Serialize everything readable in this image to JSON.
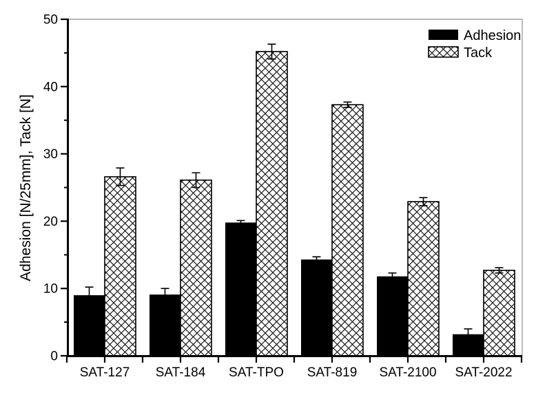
{
  "chart_data": {
    "type": "bar",
    "title": "",
    "xlabel": "",
    "ylabel": "Adhesion [N/25mm], Tack [N]",
    "categories": [
      "SAT-127",
      "SAT-184",
      "SAT-TPO",
      "SAT-819",
      "SAT-2100",
      "SAT-2022"
    ],
    "series": [
      {
        "name": "Adhesion",
        "style": "solid",
        "values": [
          9.0,
          9.1,
          19.8,
          14.3,
          11.8,
          3.2
        ],
        "errors": [
          1.2,
          0.9,
          0.3,
          0.4,
          0.5,
          0.8
        ]
      },
      {
        "name": "Tack",
        "style": "crosshatch",
        "values": [
          26.6,
          26.1,
          45.2,
          37.3,
          22.9,
          12.7
        ],
        "errors": [
          1.3,
          1.1,
          1.1,
          0.4,
          0.6,
          0.4
        ]
      }
    ],
    "ylim": [
      0,
      50
    ],
    "y_major_ticks": [
      0,
      10,
      20,
      30,
      40,
      50
    ],
    "y_minor_ticks": [
      5,
      15,
      25,
      35,
      45
    ],
    "grid": false,
    "legend_position": "top-right",
    "error_bars": true
  },
  "colors": {
    "bar_fill": "#000000",
    "hatch_ink": "#1a1a1a",
    "axis": "#000000",
    "frame_gray": "#8e8e8e",
    "background": "#ffffff"
  }
}
